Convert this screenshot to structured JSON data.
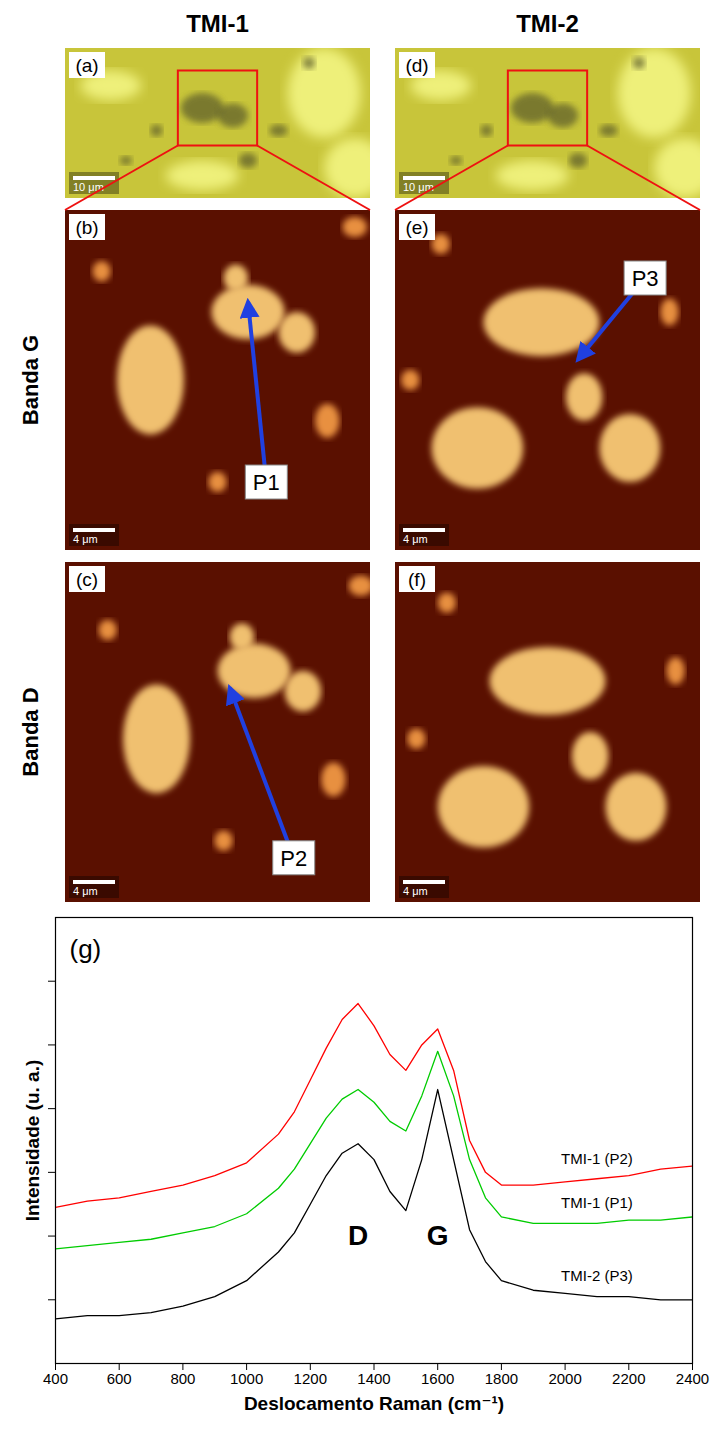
{
  "figure": {
    "columns": [
      "TMI-1",
      "TMI-2"
    ],
    "rows": [
      "Banda G",
      "Banda D"
    ],
    "panels": [
      {
        "letter": "(a)",
        "column": "TMI-1",
        "scale_bar": "10 μm"
      },
      {
        "letter": "(b)",
        "column": "TMI-1",
        "row": "Banda G",
        "scale_bar": "4 μm"
      },
      {
        "letter": "(c)",
        "column": "TMI-1",
        "row": "Banda D",
        "scale_bar": "4 μm"
      },
      {
        "letter": "(d)",
        "column": "TMI-2",
        "scale_bar": "10 μm"
      },
      {
        "letter": "(e)",
        "column": "TMI-2",
        "row": "Banda G",
        "scale_bar": "4 μm"
      },
      {
        "letter": "(f)",
        "column": "TMI-2",
        "row": "Banda D",
        "scale_bar": "4 μm"
      }
    ],
    "markers": [
      {
        "label": "P1",
        "panel": "(b)"
      },
      {
        "label": "P2",
        "panel": "(c)"
      },
      {
        "label": "P3",
        "panel": "(e)"
      }
    ]
  },
  "chart_data": {
    "type": "line",
    "panel_letter": "(g)",
    "x_label": "Deslocamento Raman (cm⁻¹)",
    "y_label": "Intensidade (u. a.)",
    "x": [
      400,
      500,
      600,
      700,
      800,
      900,
      1000,
      1100,
      1150,
      1200,
      1250,
      1300,
      1350,
      1400,
      1450,
      1500,
      1550,
      1600,
      1650,
      1700,
      1750,
      1800,
      1900,
      2000,
      2100,
      2200,
      2300,
      2400
    ],
    "series": [
      {
        "name": "TMI-1 (P2)",
        "color": "#ff0000",
        "values": [
          2.45,
          2.55,
          2.6,
          2.7,
          2.8,
          2.95,
          3.15,
          3.6,
          3.95,
          4.45,
          4.95,
          5.4,
          5.65,
          5.3,
          4.85,
          4.6,
          5.0,
          5.25,
          4.6,
          3.5,
          3.0,
          2.8,
          2.8,
          2.85,
          2.9,
          2.95,
          3.05,
          3.1
        ]
      },
      {
        "name": "TMI-1 (P1)",
        "color": "#00cc00",
        "values": [
          1.8,
          1.85,
          1.9,
          1.95,
          2.05,
          2.15,
          2.35,
          2.75,
          3.05,
          3.45,
          3.85,
          4.15,
          4.3,
          4.1,
          3.8,
          3.65,
          4.2,
          4.9,
          4.2,
          3.2,
          2.6,
          2.3,
          2.2,
          2.2,
          2.2,
          2.25,
          2.25,
          2.3
        ]
      },
      {
        "name": "TMI-2 (P3)",
        "color": "#000000",
        "values": [
          0.7,
          0.75,
          0.75,
          0.8,
          0.9,
          1.05,
          1.3,
          1.75,
          2.05,
          2.5,
          2.95,
          3.3,
          3.45,
          3.2,
          2.7,
          2.4,
          3.2,
          4.3,
          3.2,
          2.1,
          1.6,
          1.3,
          1.15,
          1.1,
          1.05,
          1.05,
          1.0,
          1.0
        ]
      }
    ],
    "annotations": [
      {
        "text": "D",
        "x": 1350,
        "y": 2.0
      },
      {
        "text": "G",
        "x": 1600,
        "y": 2.0
      }
    ],
    "xlim": [
      400,
      2400
    ],
    "xticks": [
      400,
      600,
      800,
      1000,
      1200,
      1400,
      1600,
      1800,
      2000,
      2200,
      2400
    ],
    "ylim": [
      0,
      7
    ],
    "yticks": [
      1,
      2,
      3,
      4,
      5,
      6
    ],
    "tick_labels": "x",
    "grid": false
  }
}
